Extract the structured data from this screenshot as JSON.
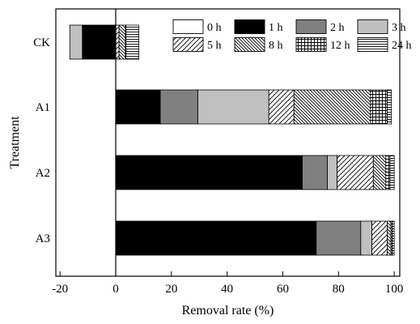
{
  "chart_data": {
    "type": "bar",
    "orientation": "horizontal",
    "stacked": true,
    "xlabel": "Removal rate (%)",
    "ylabel": "Treatment",
    "xlim": [
      -20,
      102
    ],
    "xticks": [
      -20,
      0,
      20,
      40,
      60,
      80,
      100
    ],
    "xtick_labels": [
      "-20",
      "0",
      "20",
      "40",
      "60",
      "80",
      "100"
    ],
    "categories": [
      "CK",
      "A1",
      "A2",
      "A3"
    ],
    "series": [
      {
        "name": "0 h",
        "fill": "white"
      },
      {
        "name": "1 h",
        "fill": "black"
      },
      {
        "name": "2 h",
        "fill": "dark-gray"
      },
      {
        "name": "3 h",
        "fill": "light-gray"
      },
      {
        "name": "5 h",
        "fill": "forward-diagonal"
      },
      {
        "name": "8 h",
        "fill": "dense-backward-diagonal"
      },
      {
        "name": "12 h",
        "fill": "grid"
      },
      {
        "name": "24 h",
        "fill": "horizontal-lines"
      }
    ],
    "bars": [
      {
        "category": "CK",
        "segments": [
          {
            "series": "0 h",
            "start": 0,
            "end": 0
          },
          {
            "series": "1 h",
            "start": 0,
            "end": -12
          },
          {
            "series": "2 h",
            "start": -12,
            "end": -12
          },
          {
            "series": "3 h",
            "start": -12,
            "end": -16.5
          },
          {
            "series": "5 h",
            "start": 0,
            "end": 1.2
          },
          {
            "series": "8 h",
            "start": 1.2,
            "end": 3.5
          },
          {
            "series": "12 h",
            "start": 3.5,
            "end": 3.7
          },
          {
            "series": "24 h",
            "start": 3.7,
            "end": 8.3
          }
        ]
      },
      {
        "category": "A1",
        "segments": [
          {
            "series": "0 h",
            "start": 0,
            "end": 0
          },
          {
            "series": "1 h",
            "start": 0,
            "end": 16
          },
          {
            "series": "2 h",
            "start": 16,
            "end": 29.5
          },
          {
            "series": "3 h",
            "start": 29.5,
            "end": 55
          },
          {
            "series": "5 h",
            "start": 55,
            "end": 64
          },
          {
            "series": "8 h",
            "start": 64,
            "end": 91.5
          },
          {
            "series": "12 h",
            "start": 91.5,
            "end": 97.5
          },
          {
            "series": "24 h",
            "start": 97.5,
            "end": 99
          }
        ]
      },
      {
        "category": "A2",
        "segments": [
          {
            "series": "0 h",
            "start": 0,
            "end": 0
          },
          {
            "series": "1 h",
            "start": 0,
            "end": 67
          },
          {
            "series": "2 h",
            "start": 67,
            "end": 76
          },
          {
            "series": "3 h",
            "start": 76,
            "end": 79.5
          },
          {
            "series": "5 h",
            "start": 79.5,
            "end": 92.5
          },
          {
            "series": "8 h",
            "start": 92.5,
            "end": 97
          },
          {
            "series": "12 h",
            "start": 97,
            "end": 98.5
          },
          {
            "series": "24 h",
            "start": 98.5,
            "end": 100
          }
        ]
      },
      {
        "category": "A3",
        "segments": [
          {
            "series": "0 h",
            "start": 0,
            "end": 0
          },
          {
            "series": "1 h",
            "start": 0,
            "end": 72
          },
          {
            "series": "2 h",
            "start": 72,
            "end": 88
          },
          {
            "series": "3 h",
            "start": 88,
            "end": 92
          },
          {
            "series": "5 h",
            "start": 92,
            "end": 97.5
          },
          {
            "series": "8 h",
            "start": 97.5,
            "end": 98.8
          },
          {
            "series": "12 h",
            "start": 98.8,
            "end": 99.3
          },
          {
            "series": "24 h",
            "start": 99.3,
            "end": 100
          }
        ]
      }
    ],
    "legend": {
      "placement": "top-right",
      "columns": 4
    },
    "grid": false,
    "zero_line": true,
    "colors": {
      "black": "#000000",
      "dark-gray": "#808080",
      "light-gray": "#c0c0c0",
      "white": "#ffffff"
    }
  }
}
